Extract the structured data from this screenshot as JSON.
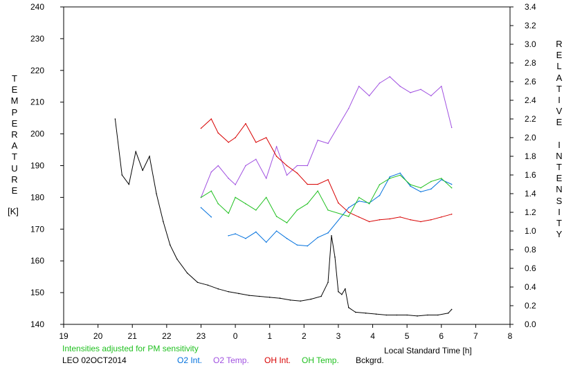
{
  "chart_data": {
    "type": "line",
    "title": "",
    "station": "LEO 02OCT2014",
    "note": "Intensities adjusted for PM sensitivity",
    "xlabel": "Local Standard Time [h]",
    "ylabel_left": "TEMPERATURE",
    "ylabel_left_unit": "[K]",
    "ylabel_right": "RELATIVE INTENSITY",
    "x_ticks": [
      "19",
      "20",
      "21",
      "22",
      "23",
      "0",
      "1",
      "2",
      "3",
      "4",
      "5",
      "6",
      "7",
      "8"
    ],
    "xlim": [
      19,
      32
    ],
    "ylim_left": [
      140,
      240
    ],
    "ylim_right": [
      0.0,
      3.4
    ],
    "y_left_ticks": [
      "140",
      "150",
      "160",
      "170",
      "180",
      "190",
      "200",
      "210",
      "220",
      "230",
      "240"
    ],
    "y_right_ticks": [
      "0.0",
      "0.2",
      "0.4",
      "0.6",
      "0.8",
      "1.0",
      "1.2",
      "1.4",
      "1.6",
      "1.8",
      "2.0",
      "2.2",
      "2.4",
      "2.6",
      "2.8",
      "3.0",
      "3.2",
      "3.4"
    ],
    "grid": false,
    "legend": "bottom",
    "series": [
      {
        "name": "O2 Int.",
        "color": "#0070dd",
        "axis": "right",
        "x": [
          23.0,
          23.3,
          23.5,
          23.8,
          24.0,
          24.3,
          24.6,
          24.9,
          25.2,
          25.5,
          25.8,
          26.1,
          26.4,
          26.7,
          27.3,
          27.6,
          27.9,
          28.2,
          28.5,
          28.8,
          29.1,
          29.4,
          29.7,
          30.0,
          30.3
        ],
        "y": [
          1.25,
          1.15,
          null,
          0.95,
          0.97,
          0.92,
          0.99,
          0.88,
          1.0,
          0.92,
          0.85,
          0.84,
          0.93,
          0.98,
          1.25,
          1.32,
          1.3,
          1.38,
          1.58,
          1.62,
          1.48,
          1.42,
          1.45,
          1.55,
          1.5
        ]
      },
      {
        "name": "O2 Temp.",
        "color": "#a050e0",
        "axis": "left",
        "x": [
          23.0,
          23.3,
          23.5,
          23.8,
          24.0,
          24.3,
          24.6,
          24.9,
          25.2,
          25.5,
          25.8,
          26.1,
          26.4,
          26.7,
          27.3,
          27.6,
          27.9,
          28.2,
          28.5,
          28.8,
          29.1,
          29.4,
          29.7,
          30.0,
          30.3
        ],
        "y": [
          180,
          188,
          190,
          186,
          184,
          190,
          192,
          186,
          196,
          187,
          190,
          190,
          198,
          197,
          208,
          215,
          212,
          216,
          218,
          215,
          213,
          214,
          212,
          215,
          202
        ]
      },
      {
        "name": "OH Int.",
        "color": "#d80000",
        "axis": "right",
        "x": [
          23.0,
          23.3,
          23.5,
          23.8,
          24.0,
          24.3,
          24.6,
          24.9,
          25.2,
          25.5,
          25.8,
          26.1,
          26.4,
          26.7,
          27.0,
          27.3,
          27.6,
          27.9,
          28.2,
          28.5,
          28.8,
          29.1,
          29.4,
          29.7,
          30.0,
          30.3
        ],
        "y": [
          2.1,
          2.2,
          2.05,
          1.95,
          2.0,
          2.15,
          1.95,
          2.0,
          1.8,
          1.7,
          1.62,
          1.5,
          1.5,
          1.55,
          1.3,
          1.2,
          1.15,
          1.1,
          1.12,
          1.13,
          1.15,
          1.12,
          1.1,
          1.12,
          1.15,
          1.18
        ]
      },
      {
        "name": "OH Temp.",
        "color": "#20c020",
        "axis": "left",
        "x": [
          23.0,
          23.3,
          23.5,
          23.8,
          24.0,
          24.3,
          24.6,
          24.9,
          25.2,
          25.5,
          25.8,
          26.1,
          26.4,
          26.7,
          27.3,
          27.6,
          27.9,
          28.2,
          28.5,
          28.8,
          29.1,
          29.4,
          29.7,
          30.0,
          30.3
        ],
        "y": [
          180,
          182,
          178,
          175,
          180,
          178,
          176,
          180,
          174,
          172,
          176,
          178,
          182,
          176,
          174,
          180,
          178,
          184,
          186,
          187,
          184,
          183,
          185,
          186,
          183
        ]
      },
      {
        "name": "Bckgrd.",
        "color": "#000000",
        "axis": "right",
        "x": [
          20.5,
          20.7,
          20.9,
          21.1,
          21.3,
          21.5,
          21.7,
          21.9,
          22.1,
          22.3,
          22.6,
          22.9,
          23.2,
          23.5,
          23.8,
          24.1,
          24.4,
          24.7,
          25.0,
          25.3,
          25.6,
          25.9,
          26.2,
          26.5,
          26.7,
          26.8,
          26.9,
          27.0,
          27.1,
          27.2,
          27.3,
          27.5,
          27.8,
          28.1,
          28.4,
          28.7,
          29.0,
          29.3,
          29.6,
          29.9,
          30.2,
          30.3
        ],
        "y": [
          2.2,
          1.6,
          1.5,
          1.85,
          1.65,
          1.8,
          1.4,
          1.1,
          0.85,
          0.7,
          0.55,
          0.45,
          0.42,
          0.38,
          0.35,
          0.33,
          0.31,
          0.3,
          0.29,
          0.28,
          0.26,
          0.25,
          0.27,
          0.3,
          0.45,
          0.95,
          0.72,
          0.35,
          0.32,
          0.38,
          0.18,
          0.13,
          0.12,
          0.11,
          0.1,
          0.1,
          0.1,
          0.09,
          0.1,
          0.1,
          0.12,
          0.16
        ]
      }
    ]
  }
}
